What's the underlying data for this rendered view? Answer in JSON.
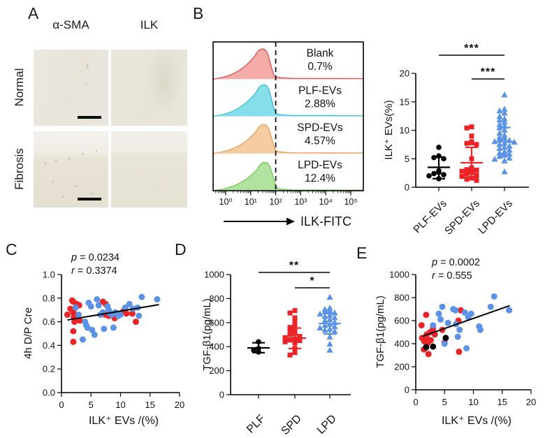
{
  "panels": {
    "a": {
      "letter": "A",
      "columns": [
        "α-SMA",
        "ILK"
      ],
      "rows": [
        "Normal",
        "Fibrosis"
      ]
    },
    "b": {
      "letter": "B"
    },
    "c": {
      "letter": "C"
    },
    "d": {
      "letter": "D"
    },
    "e": {
      "letter": "E"
    }
  },
  "colors": {
    "red_marker": "#EB2428",
    "blue_marker": "#5B92E5",
    "black_marker": "#000000"
  },
  "chart_data": [
    {
      "id": "flow",
      "type": "histogram-stack",
      "x_axis": {
        "label": "ILK-FITC",
        "scale": "log10",
        "tick_exponents": [
          0,
          1,
          2,
          3,
          4,
          5
        ]
      },
      "gate_x": 100,
      "series": [
        {
          "name": "Blank",
          "pct": "0.7%",
          "fill": "#F4A6A2",
          "stroke": "#DD5A5E",
          "peak": 32
        },
        {
          "name": "PLF-EVs",
          "pct": "2.88%",
          "fill": "#7FDCE9",
          "stroke": "#3EC3DA",
          "peak": 36
        },
        {
          "name": "SPD-EVs",
          "pct": "4.57%",
          "fill": "#F6CA9D",
          "stroke": "#E9A260",
          "peak": 36
        },
        {
          "name": "LPD-EVs",
          "pct": "12.4%",
          "fill": "#ADE29B",
          "stroke": "#7BC95F",
          "peak": 40
        }
      ]
    },
    {
      "id": "b_dot",
      "type": "dot",
      "y_axis": {
        "label": "ILK⁺ EVs(%)",
        "min": 0,
        "max": 20,
        "ticks": [
          0,
          5,
          10,
          15,
          20
        ]
      },
      "groups": [
        {
          "label": "PLF-EVs",
          "marker": "circle",
          "color": "#000000",
          "values": [
            7.0,
            5.5,
            5.2,
            5.0,
            2.9,
            2.6,
            2.4,
            2.2,
            2.0,
            1.5
          ],
          "mean": 3.5,
          "err_lo": 1.5,
          "err_hi": 5.3
        },
        {
          "label": "SPD-EVs",
          "marker": "square",
          "color": "#EB2428",
          "values": [
            10.6,
            10.4,
            9.0,
            8.0,
            7.8,
            7.7,
            7.5,
            5.0,
            3.4,
            3.2,
            3.1,
            3.0,
            2.8,
            2.6,
            2.3,
            2.1,
            1.9,
            1.6,
            1.4,
            1.2
          ],
          "mean": 4.3,
          "err_lo": 1.7,
          "err_hi": 7.0
        },
        {
          "label": "LPD-EVs",
          "marker": "triangle",
          "color": "#5B92E5",
          "values": [
            16.2,
            13.7,
            13.4,
            13.0,
            12.4,
            12.0,
            11.8,
            11.4,
            11.0,
            10.7,
            10.4,
            10.0,
            9.5,
            9.1,
            8.8,
            8.6,
            8.4,
            8.2,
            8.0,
            7.9,
            7.7,
            7.5,
            7.2,
            7.0,
            6.8,
            6.5,
            6.2,
            6.0,
            5.8,
            5.6,
            5.4,
            5.1,
            4.9,
            4.6,
            2.7
          ],
          "mean": 8.0,
          "err_lo": 5.6,
          "err_hi": 10.5
        }
      ],
      "significance": [
        {
          "from": 0,
          "to": 2,
          "label": "***"
        },
        {
          "from": 1,
          "to": 2,
          "label": "***"
        }
      ]
    },
    {
      "id": "c_xy",
      "type": "scatter",
      "stats": [
        {
          "sym": "p",
          "val": " = 0.0234"
        },
        {
          "sym": "r",
          "val": " = 0.3374"
        }
      ],
      "x_axis": {
        "label": "ILK⁺ EVs /(%)",
        "min": 0,
        "max": 20,
        "ticks": [
          0,
          5,
          10,
          15,
          20
        ]
      },
      "y_axis": {
        "label": "4h D/P Cre",
        "min": 0,
        "max": 1.0,
        "ticks": [
          "0.0",
          "0.2",
          "0.4",
          "0.6",
          "0.8",
          "1.0"
        ]
      },
      "series": [
        {
          "name": "red",
          "color": "#EB2428",
          "points": [
            [
              1.0,
              0.66
            ],
            [
              1.5,
              0.71
            ],
            [
              1.8,
              0.78
            ],
            [
              2.0,
              0.77
            ],
            [
              2.0,
              0.68
            ],
            [
              2.1,
              0.64
            ],
            [
              2.2,
              0.6
            ],
            [
              2.0,
              0.52
            ],
            [
              2.0,
              0.43
            ],
            [
              2.6,
              0.75
            ],
            [
              3.0,
              0.74
            ],
            [
              3.1,
              0.61
            ],
            [
              7.0,
              0.77
            ],
            [
              7.5,
              0.75
            ],
            [
              7.4,
              0.66
            ],
            [
              8.0,
              0.65
            ],
            [
              9.0,
              0.63
            ],
            [
              10.5,
              0.69
            ],
            [
              11.0,
              0.67
            ],
            [
              12.0,
              0.67
            ],
            [
              12.6,
              0.6
            ]
          ]
        },
        {
          "name": "blue",
          "color": "#5B92E5",
          "points": [
            [
              2.4,
              0.72
            ],
            [
              2.9,
              0.66
            ],
            [
              3.6,
              0.45
            ],
            [
              4.0,
              0.6
            ],
            [
              4.2,
              0.57
            ],
            [
              4.4,
              0.55
            ],
            [
              4.6,
              0.76
            ],
            [
              5.0,
              0.73
            ],
            [
              5.2,
              0.53
            ],
            [
              5.6,
              0.49
            ],
            [
              6.0,
              0.79
            ],
            [
              6.3,
              0.74
            ],
            [
              6.6,
              0.66
            ],
            [
              7.0,
              0.68
            ],
            [
              7.2,
              0.54
            ],
            [
              7.8,
              0.73
            ],
            [
              8.0,
              0.7
            ],
            [
              8.2,
              0.67
            ],
            [
              8.5,
              0.66
            ],
            [
              8.8,
              0.55
            ],
            [
              9.1,
              0.68
            ],
            [
              9.6,
              0.65
            ],
            [
              10.0,
              0.66
            ],
            [
              10.8,
              0.72
            ],
            [
              11.5,
              0.75
            ],
            [
              12.1,
              0.71
            ],
            [
              12.9,
              0.72
            ],
            [
              13.1,
              0.65
            ],
            [
              13.6,
              0.81
            ],
            [
              16.2,
              0.79
            ]
          ]
        }
      ],
      "trend": {
        "x1": 1.0,
        "y1": 0.615,
        "x2": 16.5,
        "y2": 0.745
      }
    },
    {
      "id": "d_dot",
      "type": "dot",
      "y_axis": {
        "label": "TGF-β1(pg/mL)",
        "min": 0,
        "max": 1000,
        "ticks": [
          0,
          200,
          400,
          600,
          800,
          1000
        ]
      },
      "groups": [
        {
          "label": "PLF",
          "marker": "circle",
          "color": "#000000",
          "values": [
            440,
            385,
            370,
            355
          ],
          "mean": 390,
          "err_lo": 350,
          "err_hi": 432
        },
        {
          "label": "SPD",
          "marker": "square",
          "color": "#EB2428",
          "values": [
            700,
            680,
            640,
            605,
            585,
            560,
            545,
            525,
            510,
            500,
            485,
            475,
            465,
            455,
            450,
            440,
            430,
            385,
            350,
            330
          ],
          "mean": 470,
          "err_lo": 385,
          "err_hi": 555
        },
        {
          "label": "LPD",
          "marker": "triangle",
          "color": "#5B92E5",
          "values": [
            810,
            720,
            710,
            700,
            690,
            680,
            670,
            660,
            650,
            640,
            625,
            615,
            600,
            585,
            575,
            565,
            555,
            545,
            535,
            525,
            480,
            420,
            370
          ],
          "mean": 592,
          "err_lo": 505,
          "err_hi": 675
        }
      ],
      "significance": [
        {
          "from": 0,
          "to": 2,
          "label": "**"
        },
        {
          "from": 1,
          "to": 2,
          "label": "*"
        }
      ]
    },
    {
      "id": "e_xy",
      "type": "scatter",
      "stats": [
        {
          "sym": "p",
          "val": " = 0.0002"
        },
        {
          "sym": "r",
          "val": " = 0.555"
        }
      ],
      "x_axis": {
        "label": "ILK⁺ EVs /(%)",
        "min": 0,
        "max": 20,
        "ticks": [
          0,
          5,
          10,
          15,
          20
        ]
      },
      "y_axis": {
        "label": "TGF-β1(pg/mL)",
        "min": 0,
        "max": 1000,
        "ticks": [
          0,
          200,
          400,
          600,
          800,
          1000
        ]
      },
      "series": [
        {
          "name": "red",
          "color": "#EB2428",
          "points": [
            [
              1.0,
              560
            ],
            [
              1.1,
              450
            ],
            [
              1.3,
              440
            ],
            [
              1.5,
              420
            ],
            [
              1.4,
              350
            ],
            [
              1.8,
              650
            ],
            [
              1.9,
              480
            ],
            [
              2.0,
              440
            ],
            [
              2.1,
              410
            ],
            [
              2.2,
              310
            ],
            [
              2.5,
              500
            ],
            [
              2.6,
              430
            ],
            [
              3.0,
              530
            ],
            [
              3.3,
              480
            ],
            [
              4.6,
              520
            ],
            [
              5.0,
              410
            ],
            [
              7.4,
              600
            ],
            [
              7.8,
              690
            ],
            [
              7.5,
              330
            ]
          ]
        },
        {
          "name": "blue",
          "color": "#5B92E5",
          "points": [
            [
              3.0,
              560
            ],
            [
              4.0,
              660
            ],
            [
              4.3,
              610
            ],
            [
              4.6,
              720
            ],
            [
              5.0,
              400
            ],
            [
              5.6,
              580
            ],
            [
              6.5,
              700
            ],
            [
              6.9,
              690
            ],
            [
              7.0,
              570
            ],
            [
              7.3,
              460
            ],
            [
              7.6,
              520
            ],
            [
              8.5,
              670
            ],
            [
              8.8,
              360
            ],
            [
              9.1,
              630
            ],
            [
              9.6,
              660
            ],
            [
              11.0,
              550
            ],
            [
              11.2,
              520
            ],
            [
              13.0,
              720
            ],
            [
              13.6,
              810
            ],
            [
              16.2,
              690
            ]
          ]
        },
        {
          "name": "black",
          "color": "#000000",
          "points": [
            [
              1.8,
              370
            ],
            [
              3.0,
              375
            ],
            [
              5.2,
              450
            ]
          ]
        }
      ],
      "trend": {
        "x1": 1.2,
        "y1": 465,
        "x2": 16.3,
        "y2": 730
      }
    }
  ]
}
